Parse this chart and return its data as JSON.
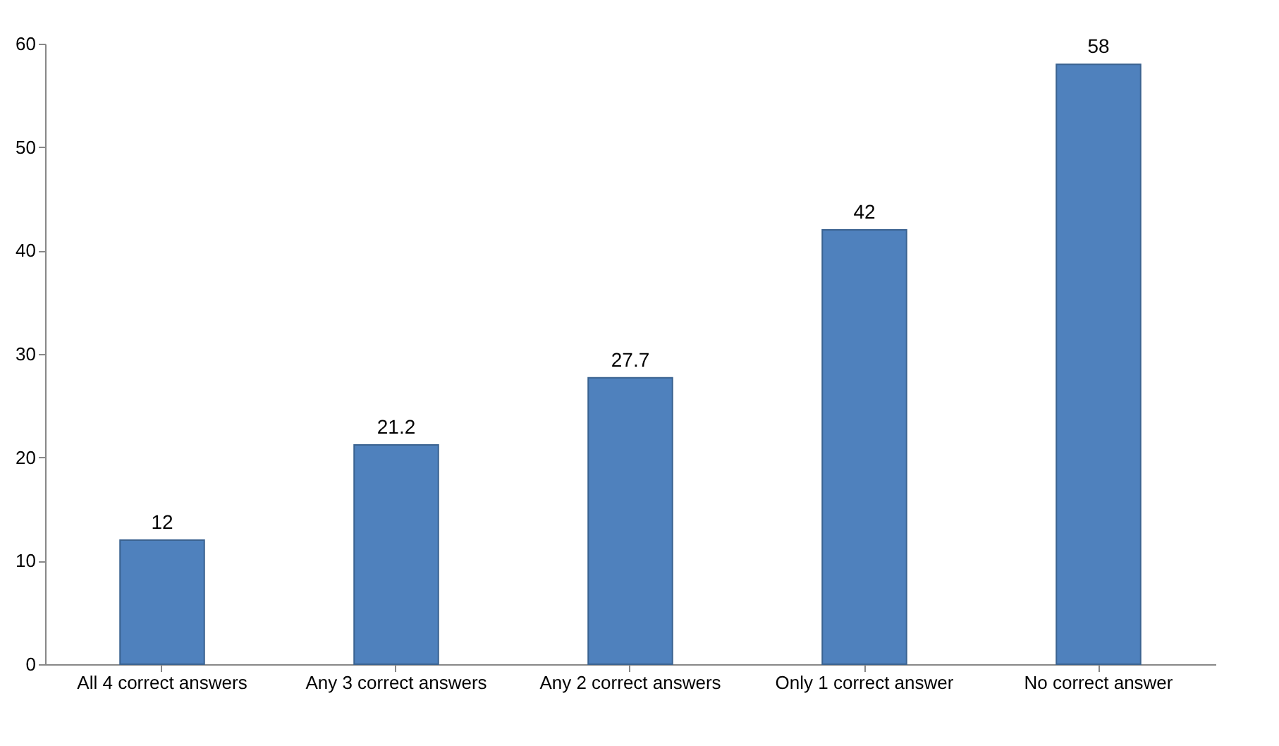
{
  "chart_data": {
    "type": "bar",
    "categories": [
      "All 4 correct answers",
      "Any 3 correct answers",
      "Any 2 correct answers",
      "Only 1 correct answer",
      "No correct answer"
    ],
    "values": [
      12,
      21.2,
      27.7,
      42,
      58
    ],
    "color": "#4f81bd",
    "ylim": [
      0,
      60
    ],
    "yticks": [
      0,
      10,
      20,
      30,
      40,
      50,
      60
    ],
    "grid": false,
    "data_labels": true
  }
}
